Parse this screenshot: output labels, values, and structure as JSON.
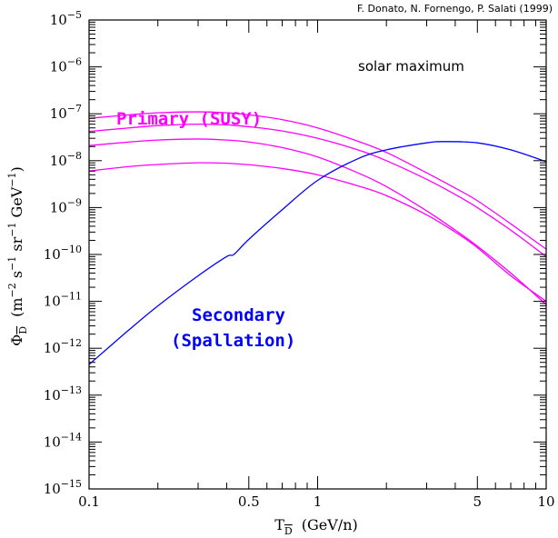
{
  "credit": "F. Donato, N. Fornengo, P. Salati (1999)",
  "colors": {
    "primary": "#ff00ff",
    "secondary": "#0000ff",
    "axis": "#000000"
  },
  "chart_data": {
    "type": "line",
    "xscale": "log",
    "yscale": "log",
    "xlim": [
      0.1,
      10
    ],
    "ylim": [
      1e-15,
      1e-05
    ],
    "xlabel": {
      "symbol": "T",
      "sub": "D",
      "units": "(GeV/n)"
    },
    "ylabel": {
      "symbol": "Φ",
      "sub": "D",
      "units_parts": [
        "(m",
        "−2",
        " s",
        "−1",
        " sr",
        "−1",
        " GeV",
        "−1",
        ")"
      ]
    },
    "x_tick_labels": [
      {
        "value": 0.1,
        "label": "0.1"
      },
      {
        "value": 0.5,
        "label": "0.5"
      },
      {
        "value": 1,
        "label": "1"
      },
      {
        "value": 5,
        "label": "5"
      },
      {
        "value": 10,
        "label": "10"
      }
    ],
    "y_tick_labels": [
      {
        "exp": -5,
        "base": "10",
        "sup": "−5"
      },
      {
        "exp": -6,
        "base": "10",
        "sup": "−6"
      },
      {
        "exp": -7,
        "base": "10",
        "sup": "−7"
      },
      {
        "exp": -8,
        "base": "10",
        "sup": "−8"
      },
      {
        "exp": -9,
        "base": "10",
        "sup": "−9"
      },
      {
        "exp": -10,
        "base": "10",
        "sup": "−10"
      },
      {
        "exp": -11,
        "base": "10",
        "sup": "−11"
      },
      {
        "exp": -12,
        "base": "10",
        "sup": "−12"
      },
      {
        "exp": -13,
        "base": "10",
        "sup": "−13"
      },
      {
        "exp": -14,
        "base": "10",
        "sup": "−14"
      },
      {
        "exp": -15,
        "base": "10",
        "sup": "−15"
      }
    ],
    "annotations": {
      "solar": "solar maximum",
      "primary": "Primary (SUSY)",
      "secondary_line1": "Secondary",
      "secondary_line2": "(Spallation)"
    },
    "series": [
      {
        "group": "primary",
        "color": "#ff00ff",
        "x": [
          0.1,
          0.15,
          0.2,
          0.3,
          0.4,
          0.5,
          0.7,
          1,
          1.5,
          2,
          3,
          4,
          5,
          7,
          10
        ],
        "y": [
          8e-08,
          9.5e-08,
          1.05e-07,
          1.1e-07,
          1.05e-07,
          9.5e-08,
          7.5e-08,
          5e-08,
          2.6e-08,
          1.5e-08,
          5.5e-09,
          2.6e-09,
          1.4e-09,
          4.5e-10,
          1.3e-10
        ]
      },
      {
        "group": "primary",
        "color": "#ff00ff",
        "x": [
          0.1,
          0.15,
          0.2,
          0.3,
          0.4,
          0.5,
          0.7,
          1,
          1.5,
          2,
          3,
          4,
          5,
          7,
          10
        ],
        "y": [
          4.2e-08,
          5e-08,
          5.6e-08,
          6e-08,
          5.8e-08,
          5.3e-08,
          4.3e-08,
          3e-08,
          1.7e-08,
          1e-08,
          4e-09,
          1.9e-09,
          1e-09,
          3.3e-10,
          9e-11
        ]
      },
      {
        "group": "primary",
        "color": "#ff00ff",
        "x": [
          0.1,
          0.15,
          0.2,
          0.3,
          0.4,
          0.5,
          0.7,
          1,
          1.5,
          2,
          3,
          4,
          5,
          7,
          10
        ],
        "y": [
          2.1e-08,
          2.5e-08,
          2.75e-08,
          2.9e-08,
          2.75e-08,
          2.5e-08,
          1.9e-08,
          1.2e-08,
          5.5e-09,
          2.8e-09,
          8.5e-10,
          3.3e-10,
          1.5e-10,
          4e-11,
          8.5e-12
        ]
      },
      {
        "group": "primary",
        "color": "#ff00ff",
        "x": [
          0.1,
          0.15,
          0.2,
          0.3,
          0.4,
          0.5,
          0.7,
          1,
          1.5,
          2,
          3,
          4,
          5,
          7,
          10
        ],
        "y": [
          6e-09,
          7.5e-09,
          8.3e-09,
          9e-09,
          8.8e-09,
          8.2e-09,
          6.8e-09,
          5e-09,
          2.9e-09,
          1.8e-09,
          7e-10,
          3e-10,
          1.4e-10,
          3.5e-11,
          1e-11
        ]
      },
      {
        "group": "secondary",
        "color": "#0000ff",
        "x": [
          0.1,
          0.15,
          0.2,
          0.3,
          0.4,
          0.43,
          0.5,
          0.7,
          1,
          1.5,
          2,
          3,
          3.6,
          5,
          7,
          10
        ],
        "y": [
          4.5e-13,
          2.5e-12,
          8e-12,
          3.5e-11,
          9e-11,
          1e-10,
          2.1e-10,
          9e-10,
          3.8e-09,
          1.1e-08,
          1.7e-08,
          2.4e-08,
          2.55e-08,
          2.4e-08,
          1.7e-08,
          9.5e-09
        ]
      }
    ]
  }
}
